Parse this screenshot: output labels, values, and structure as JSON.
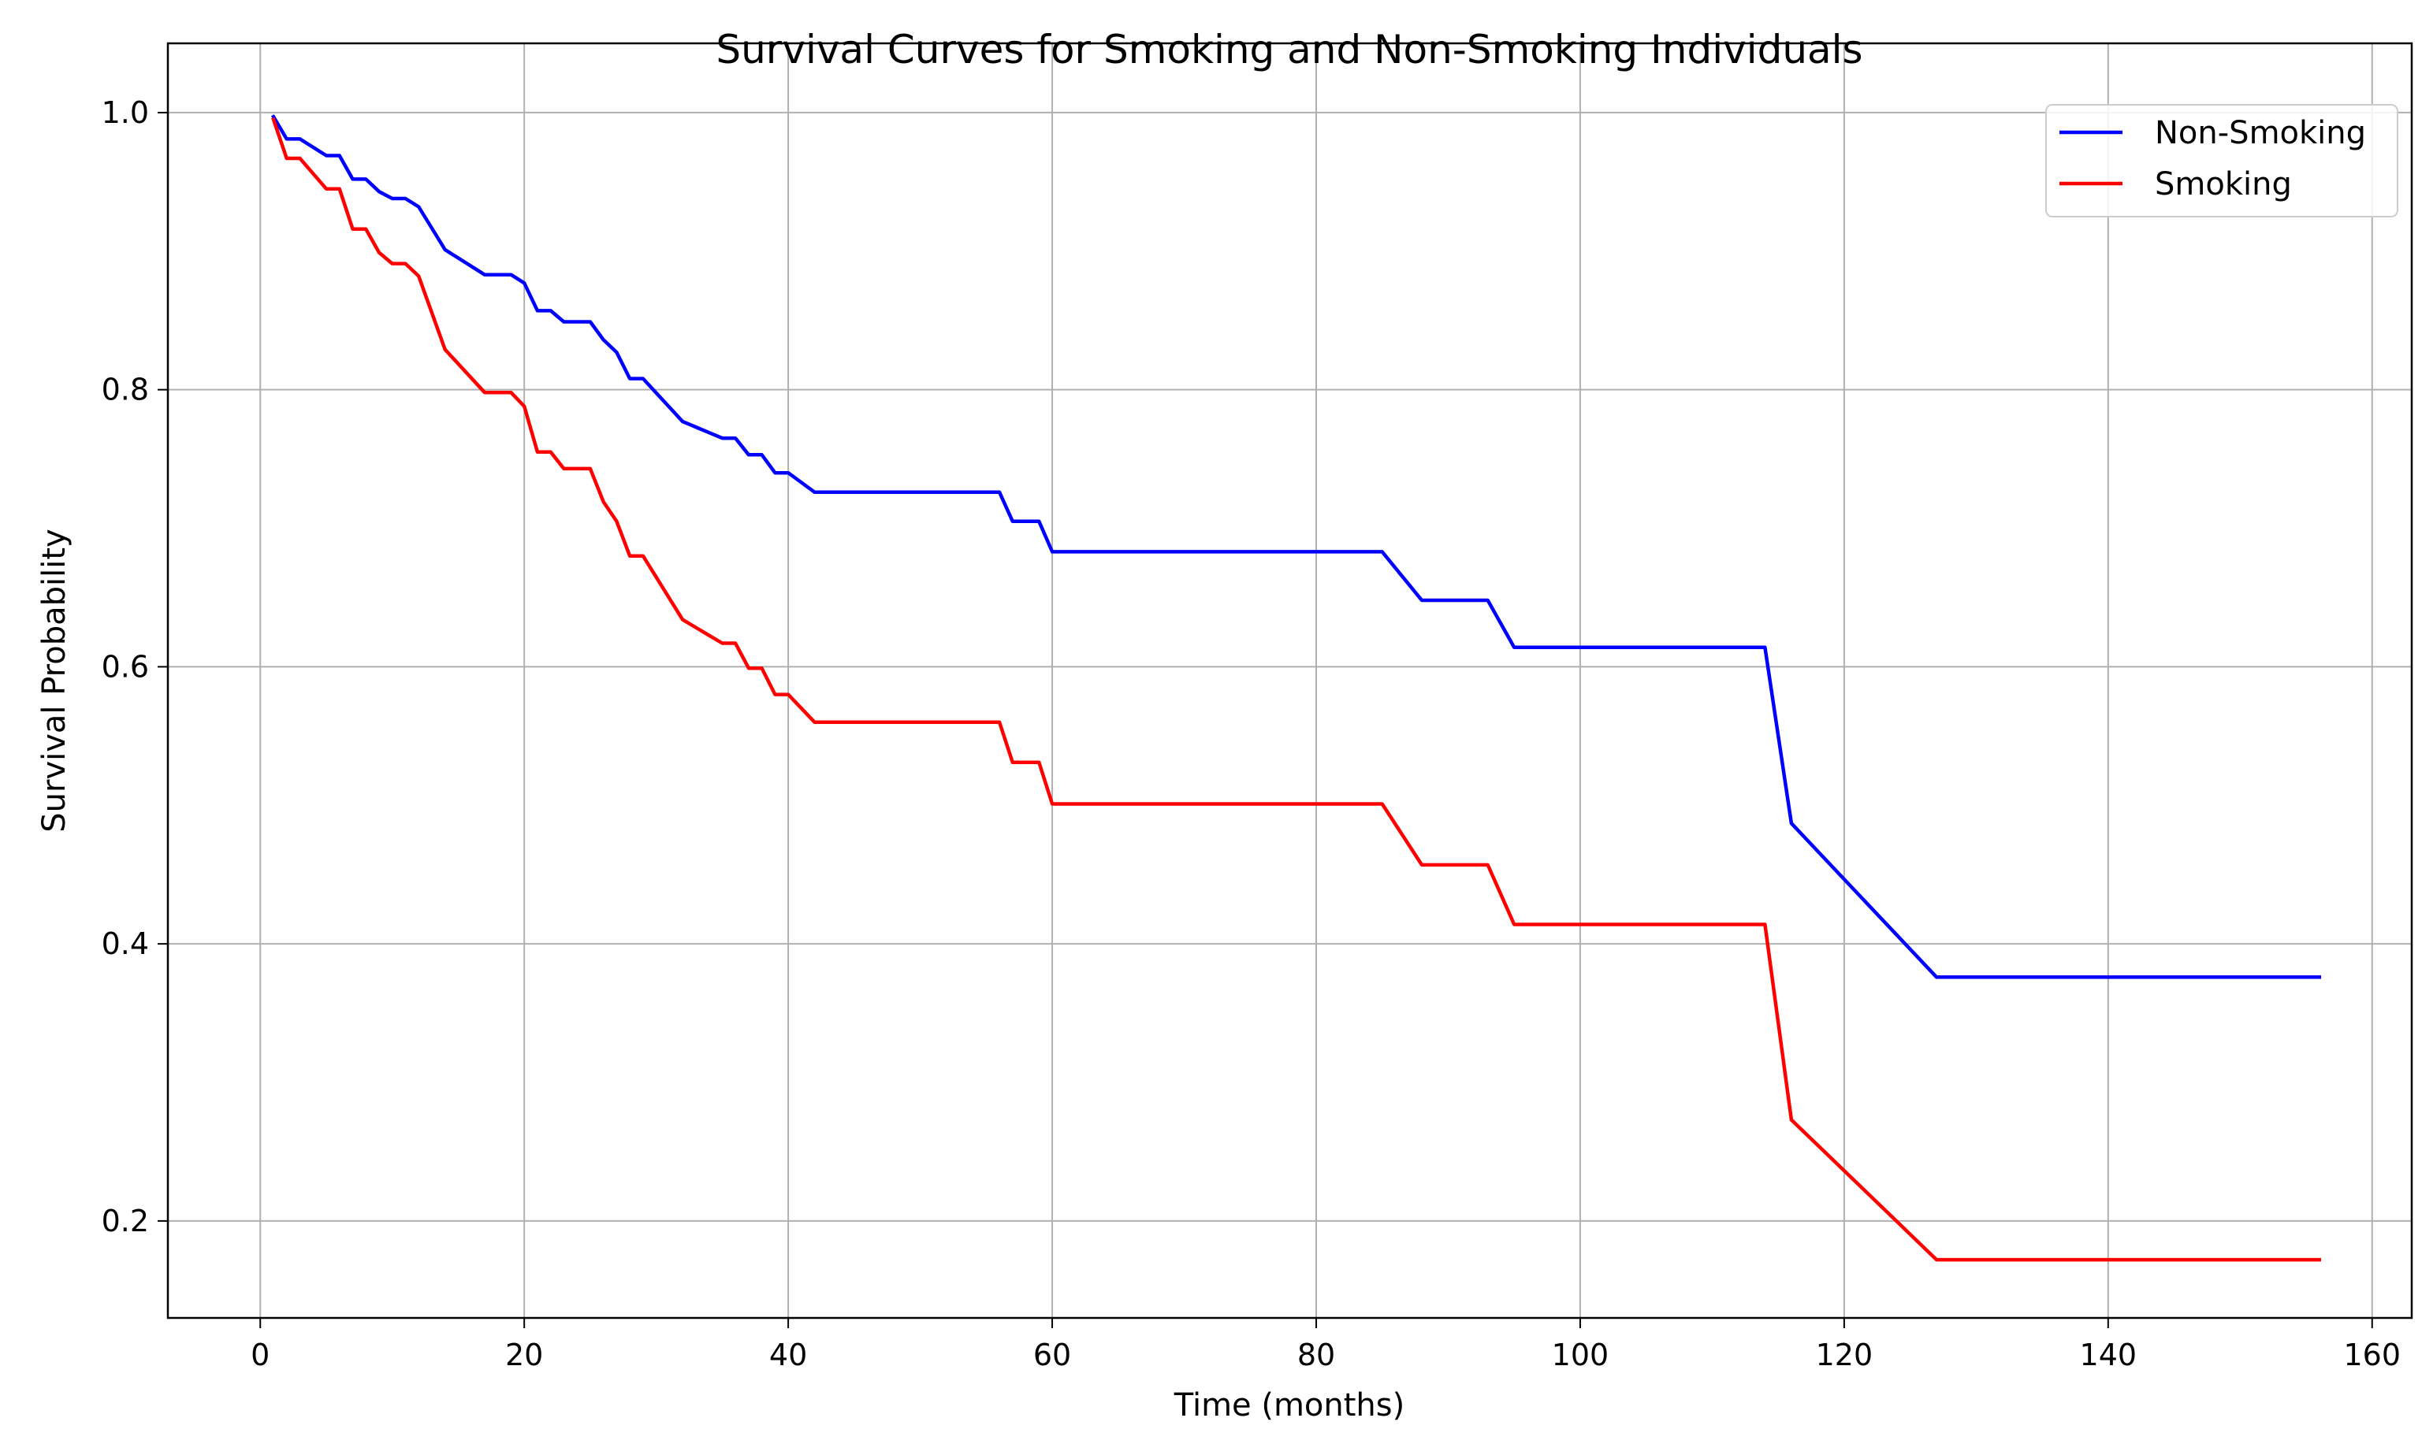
{
  "chart_data": {
    "type": "line",
    "title": "Survival Curves for Smoking and Non-Smoking Individuals",
    "xlabel": "Time (months)",
    "ylabel": "Survival Probability",
    "xlim": [
      -7,
      163
    ],
    "ylim": [
      0.13,
      1.05
    ],
    "xticks": [
      0,
      20,
      40,
      60,
      80,
      100,
      120,
      140,
      160
    ],
    "yticks": [
      0.2,
      0.4,
      0.6,
      0.8,
      1.0
    ],
    "xtick_labels": [
      "0",
      "20",
      "40",
      "60",
      "80",
      "100",
      "120",
      "140",
      "160"
    ],
    "ytick_labels": [
      "0.2",
      "0.4",
      "0.6",
      "0.8",
      "1.0"
    ],
    "grid": true,
    "legend_position": "top-right",
    "series": [
      {
        "name": "Non-Smoking",
        "color": "#0000ff",
        "x": [
          1,
          2,
          3,
          4,
          5,
          6,
          7,
          8,
          9,
          10,
          11,
          12,
          14,
          17,
          19,
          20,
          21,
          22,
          23,
          25,
          26,
          27,
          28,
          29,
          32,
          35,
          36,
          37,
          38,
          39,
          40,
          42,
          56,
          57,
          59,
          60,
          85,
          88,
          93,
          95,
          114,
          116,
          127,
          156
        ],
        "y": [
          0.997,
          0.981,
          0.981,
          0.975,
          0.969,
          0.969,
          0.952,
          0.952,
          0.943,
          0.938,
          0.938,
          0.932,
          0.901,
          0.883,
          0.883,
          0.877,
          0.857,
          0.857,
          0.849,
          0.849,
          0.836,
          0.827,
          0.808,
          0.808,
          0.777,
          0.765,
          0.765,
          0.753,
          0.753,
          0.74,
          0.74,
          0.726,
          0.726,
          0.705,
          0.705,
          0.683,
          0.683,
          0.648,
          0.648,
          0.614,
          0.614,
          0.487,
          0.376,
          0.376
        ]
      },
      {
        "name": "Smoking",
        "color": "#ff0000",
        "x": [
          1,
          2,
          3,
          4,
          5,
          6,
          7,
          8,
          9,
          10,
          11,
          12,
          14,
          17,
          19,
          20,
          21,
          22,
          23,
          25,
          26,
          27,
          28,
          29,
          32,
          35,
          36,
          37,
          38,
          39,
          40,
          42,
          56,
          57,
          59,
          60,
          85,
          88,
          93,
          95,
          114,
          116,
          127,
          156
        ],
        "y": [
          0.995,
          0.967,
          0.967,
          0.956,
          0.945,
          0.945,
          0.916,
          0.916,
          0.899,
          0.891,
          0.891,
          0.882,
          0.829,
          0.798,
          0.798,
          0.788,
          0.755,
          0.755,
          0.743,
          0.743,
          0.719,
          0.705,
          0.68,
          0.68,
          0.634,
          0.617,
          0.617,
          0.599,
          0.599,
          0.58,
          0.58,
          0.56,
          0.56,
          0.531,
          0.531,
          0.501,
          0.501,
          0.457,
          0.457,
          0.414,
          0.414,
          0.273,
          0.172,
          0.172
        ]
      }
    ]
  }
}
